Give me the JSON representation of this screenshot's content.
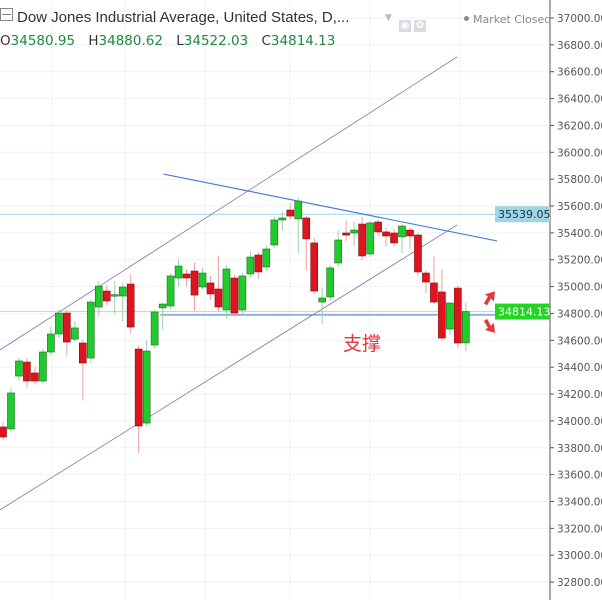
{
  "header": {
    "title": "Dow Jones Industrial Average, United States, D,...",
    "status": "Market Closed",
    "ohlc": {
      "o_label": "O",
      "o": "34580.95",
      "h_label": "H",
      "h": "34880.62",
      "l_label": "L",
      "l": "34522.03",
      "c_label": "C",
      "c": "34814.13"
    }
  },
  "annotation": {
    "text": "支撑",
    "color": "#e8323c"
  },
  "colors": {
    "up": "#1fcc2b",
    "down": "#e0141e",
    "up_border": "#1a6b24",
    "down_border": "#7a1010",
    "channel": "#8e6aa8",
    "trendline": "#4a7fd6",
    "last_price": "#21d521",
    "mark_price": "#9fd6e6"
  },
  "chart_data": {
    "type": "candlestick",
    "title": "",
    "xlabel": "",
    "ylabel": "",
    "ylim": [
      32700,
      37100
    ],
    "y_ticks": [
      "37000.00",
      "36800.00",
      "36600.00",
      "36400.00",
      "36200.00",
      "36000.00",
      "35800.00",
      "35600.00",
      "35400.00",
      "35200.00",
      "35000.00",
      "34800.00",
      "34600.00",
      "34400.00",
      "34200.00",
      "34000.00",
      "33800.00",
      "33600.00",
      "33400.00",
      "33200.00",
      "33000.00",
      "32800.00"
    ],
    "grid": true,
    "candles": [
      [
        33955,
        33990,
        33860,
        33880
      ],
      [
        33940,
        34250,
        33920,
        34208
      ],
      [
        34334,
        34470,
        34300,
        34446
      ],
      [
        34438,
        34470,
        34250,
        34297
      ],
      [
        34357,
        34400,
        34270,
        34297
      ],
      [
        34297,
        34540,
        34280,
        34513
      ],
      [
        34513,
        34700,
        34490,
        34647
      ],
      [
        34647,
        34830,
        34620,
        34803
      ],
      [
        34803,
        34830,
        34480,
        34587
      ],
      [
        34609,
        34740,
        34590,
        34692
      ],
      [
        34580,
        34600,
        34150,
        34431
      ],
      [
        34468,
        34900,
        34430,
        34885
      ],
      [
        34848,
        35040,
        34780,
        35004
      ],
      [
        34967,
        35010,
        34860,
        34893
      ],
      [
        34937,
        35040,
        34800,
        34940
      ],
      [
        34930,
        35030,
        34740,
        34997
      ],
      [
        35019,
        35090,
        34650,
        34699
      ],
      [
        34535,
        34560,
        33760,
        33962
      ],
      [
        33984,
        34600,
        33960,
        34520
      ],
      [
        34565,
        34830,
        34540,
        34811
      ],
      [
        34841,
        34880,
        34680,
        34870
      ],
      [
        34856,
        35100,
        34830,
        35079
      ],
      [
        35064,
        35200,
        35000,
        35153
      ],
      [
        35094,
        35130,
        35000,
        35064
      ],
      [
        35116,
        35180,
        34820,
        34937
      ],
      [
        34997,
        35140,
        34980,
        35101
      ],
      [
        35027,
        35080,
        34900,
        34945
      ],
      [
        34982,
        35230,
        34810,
        34848
      ],
      [
        34826,
        35160,
        34760,
        35131
      ],
      [
        35064,
        35090,
        34780,
        34803
      ],
      [
        34826,
        35100,
        34800,
        35079
      ],
      [
        35094,
        35260,
        35070,
        35220
      ],
      [
        35235,
        35260,
        35060,
        35109
      ],
      [
        35146,
        35310,
        35120,
        35280
      ],
      [
        35310,
        35520,
        35290,
        35496
      ],
      [
        35496,
        35560,
        35420,
        35511
      ],
      [
        35570,
        35620,
        35500,
        35525
      ],
      [
        35504,
        35660,
        35250,
        35637
      ],
      [
        35511,
        35530,
        35120,
        35355
      ],
      [
        35325,
        35360,
        34950,
        34967
      ],
      [
        34885,
        34990,
        34720,
        34915
      ],
      [
        34923,
        35160,
        34890,
        35139
      ],
      [
        35176,
        35420,
        35150,
        35347
      ],
      [
        35399,
        35490,
        35340,
        35384
      ],
      [
        35399,
        35480,
        35300,
        35421
      ],
      [
        35466,
        35520,
        35200,
        35228
      ],
      [
        35243,
        35490,
        35220,
        35474
      ],
      [
        35481,
        35500,
        35380,
        35407
      ],
      [
        35407,
        35440,
        35300,
        35377
      ],
      [
        35399,
        35430,
        35300,
        35325
      ],
      [
        35370,
        35470,
        35250,
        35451
      ],
      [
        35421,
        35440,
        35280,
        35377
      ],
      [
        35384,
        35400,
        35080,
        35109
      ],
      [
        35101,
        35120,
        34950,
        35034
      ],
      [
        35027,
        35230,
        34870,
        34885
      ],
      [
        34960,
        35130,
        34600,
        34617
      ],
      [
        34684,
        34880,
        34640,
        34878
      ],
      [
        34989,
        35010,
        34540,
        34580
      ],
      [
        34580.95,
        34880.62,
        34522.03,
        34814.13
      ]
    ],
    "price_lines": [
      {
        "price": 35539.05,
        "label": "35539.05"
      },
      {
        "price": 34814.13,
        "label": "34814.13"
      }
    ],
    "drawings": [
      {
        "kind": "channel-upper",
        "from": [
          -0.4,
          34528
        ],
        "to": [
          56.9,
          36710
        ]
      },
      {
        "kind": "channel-lower",
        "from": [
          -0.4,
          33337
        ],
        "to": [
          56.9,
          35459
        ]
      },
      {
        "kind": "resistance",
        "from": [
          20.1,
          35838
        ],
        "to": [
          61.9,
          35340
        ]
      },
      {
        "kind": "support",
        "from": [
          19.7,
          34789
        ],
        "to": [
          61.9,
          34789
        ]
      }
    ],
    "markers": [
      {
        "kind": "arrow-up",
        "bar": 61.9,
        "price": 34920
      },
      {
        "kind": "arrow-down",
        "bar": 61.9,
        "price": 34700
      }
    ]
  }
}
